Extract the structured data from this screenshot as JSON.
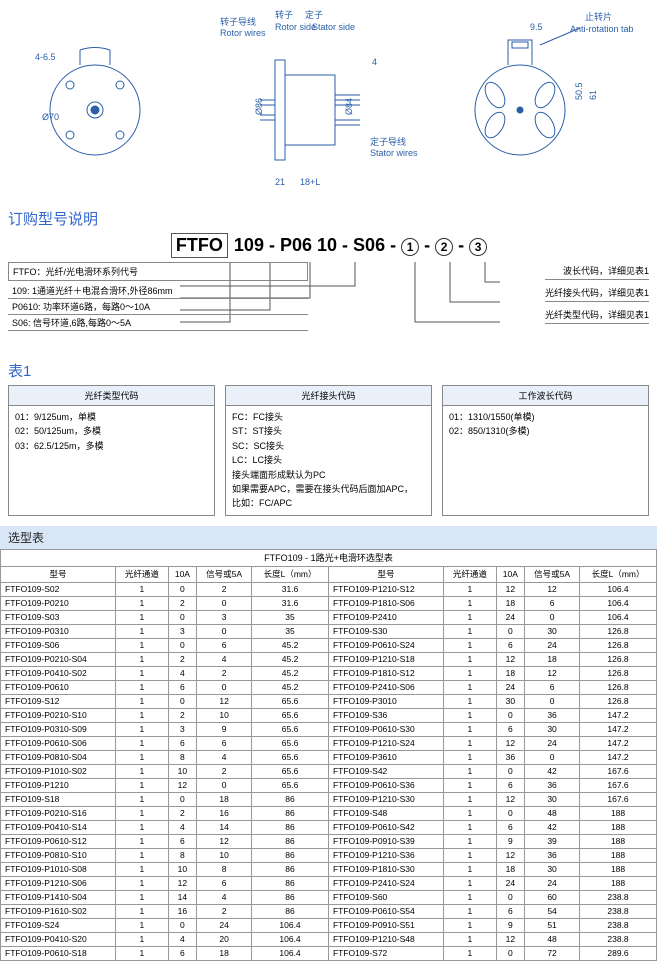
{
  "diagram": {
    "labels": {
      "rotor_side_cn": "转子",
      "stator_side_cn": "定子",
      "rotor_side_en": "Rotor side",
      "rotor_wires_cn": "转子导线",
      "rotor_wires_en": "Rotor wires",
      "stator_side_en": "Stator side",
      "stator_wires_cn": "定子导线",
      "stator_wires_en": "Stator wires",
      "anti_rotation_cn": "止转片",
      "anti_rotation_en": "Anti-rotation tab",
      "dim_d70": "Ø70",
      "dim_465": "4-6.5",
      "dim_d86": "Ø86",
      "dim_d84": "Ø84",
      "dim_21": "21",
      "dim_18L": "18+L",
      "dim_4": "4",
      "dim_95": "9.5",
      "dim_505": "50.5",
      "dim_61": "61"
    },
    "colors": {
      "line": "#2b5fa8",
      "text": "#2b5fa8"
    }
  },
  "section_titles": {
    "ordering": "订购型号说明",
    "table1": "表1",
    "selection": "选型表"
  },
  "part_number": {
    "p1": "FTFO",
    "p2": "109",
    "p3": "P06",
    "p4": "10",
    "p5": "S06",
    "c1": "1",
    "c2": "2",
    "c3": "3"
  },
  "legend_left": {
    "box": "FTFO：光纤/光电滑环系列代号",
    "l1": "109: 1通道光纤＋电混合滑环,外径86mm",
    "l2": "P0610: 功率环道6路，每路0～10A",
    "l3": "S06: 信号环道,6路,每路0～5A"
  },
  "legend_right": {
    "r1": "波长代码，详细见表1",
    "r2": "光纤接头代码，详细见表1",
    "r3": "光纤类型代码，详细见表1"
  },
  "table1": {
    "col1_header": "光纤类型代码",
    "col2_header": "光纤接头代码",
    "col3_header": "工作波长代码",
    "col1_lines": [
      "01：9/125um，单模",
      "02：50/125um，多模",
      "03：62.5/125m，多模"
    ],
    "col2_lines": [
      "FC：FC接头",
      "ST：ST接头",
      "SC：SC接头",
      "LC：LC接头",
      "接头端面形成默认为PC",
      "如果需要APC，需要在接头代码后面加APC，",
      "比如：FC/APC"
    ],
    "col3_lines": [
      "01：1310/1550(单模)",
      "02：850/1310(多模)"
    ]
  },
  "selection": {
    "title": "FTFO109 - 1路光+电滑环选型表",
    "headers": {
      "model": "型号",
      "fiber": "光纤通道",
      "a10": "10A",
      "sig5a": "信号或5A",
      "len": "长度L（mm）"
    },
    "left_rows": [
      [
        "FTFO109-S02",
        "1",
        "0",
        "2",
        "31.6"
      ],
      [
        "FTFO109-P0210",
        "1",
        "2",
        "0",
        "31.6"
      ],
      [
        "FTFO109-S03",
        "1",
        "0",
        "3",
        "35"
      ],
      [
        "FTFO109-P0310",
        "1",
        "3",
        "0",
        "35"
      ],
      [
        "FTFO109-S06",
        "1",
        "0",
        "6",
        "45.2"
      ],
      [
        "FTFO109-P0210-S04",
        "1",
        "2",
        "4",
        "45.2"
      ],
      [
        "FTFO109-P0410-S02",
        "1",
        "4",
        "2",
        "45.2"
      ],
      [
        "FTFO109-P0610",
        "1",
        "6",
        "0",
        "45.2"
      ],
      [
        "FTFO109-S12",
        "1",
        "0",
        "12",
        "65.6"
      ],
      [
        "FTFO109-P0210-S10",
        "1",
        "2",
        "10",
        "65.6"
      ],
      [
        "FTFO109-P0310-S09",
        "1",
        "3",
        "9",
        "65.6"
      ],
      [
        "FTFO109-P0610-S06",
        "1",
        "6",
        "6",
        "65.6"
      ],
      [
        "FTFO109-P0810-S04",
        "1",
        "8",
        "4",
        "65.6"
      ],
      [
        "FTFO109-P1010-S02",
        "1",
        "10",
        "2",
        "65.6"
      ],
      [
        "FTFO109-P1210",
        "1",
        "12",
        "0",
        "65.6"
      ],
      [
        "FTFO109-S18",
        "1",
        "0",
        "18",
        "86"
      ],
      [
        "FTFO109-P0210-S16",
        "1",
        "2",
        "16",
        "86"
      ],
      [
        "FTFO109-P0410-S14",
        "1",
        "4",
        "14",
        "86"
      ],
      [
        "FTFO109-P0610-S12",
        "1",
        "6",
        "12",
        "86"
      ],
      [
        "FTFO109-P0810-S10",
        "1",
        "8",
        "10",
        "86"
      ],
      [
        "FTFO109-P1010-S08",
        "1",
        "10",
        "8",
        "86"
      ],
      [
        "FTFO109-P1210-S06",
        "1",
        "12",
        "6",
        "86"
      ],
      [
        "FTFO109-P1410-S04",
        "1",
        "14",
        "4",
        "86"
      ],
      [
        "FTFO109-P1610-S02",
        "1",
        "16",
        "2",
        "86"
      ],
      [
        "FTFO109-S24",
        "1",
        "0",
        "24",
        "106.4"
      ],
      [
        "FTFO109-P0410-S20",
        "1",
        "4",
        "20",
        "106.4"
      ],
      [
        "FTFO109-P0610-S18",
        "1",
        "6",
        "18",
        "106.4"
      ]
    ],
    "right_rows": [
      [
        "FTFO109-P1210-S12",
        "1",
        "12",
        "12",
        "106.4"
      ],
      [
        "FTFO109-P1810-S06",
        "1",
        "18",
        "6",
        "106.4"
      ],
      [
        "FTFO109-P2410",
        "1",
        "24",
        "0",
        "106.4"
      ],
      [
        "FTFO109-S30",
        "1",
        "0",
        "30",
        "126.8"
      ],
      [
        "FTFO109-P0610-S24",
        "1",
        "6",
        "24",
        "126.8"
      ],
      [
        "FTFO109-P1210-S18",
        "1",
        "12",
        "18",
        "126.8"
      ],
      [
        "FTFO109-P1810-S12",
        "1",
        "18",
        "12",
        "126.8"
      ],
      [
        "FTFO109-P2410-S06",
        "1",
        "24",
        "6",
        "126.8"
      ],
      [
        "FTFO109-P3010",
        "1",
        "30",
        "0",
        "126.8"
      ],
      [
        "FTFO109-S36",
        "1",
        "0",
        "36",
        "147.2"
      ],
      [
        "FTFO109-P0610-S30",
        "1",
        "6",
        "30",
        "147.2"
      ],
      [
        "FTFO109-P1210-S24",
        "1",
        "12",
        "24",
        "147.2"
      ],
      [
        "FTFO109-P3610",
        "1",
        "36",
        "0",
        "147.2"
      ],
      [
        "FTFO109-S42",
        "1",
        "0",
        "42",
        "167.6"
      ],
      [
        "FTFO109-P0610-S36",
        "1",
        "6",
        "36",
        "167.6"
      ],
      [
        "FTFO109-P1210-S30",
        "1",
        "12",
        "30",
        "167.6"
      ],
      [
        "FTFO109-S48",
        "1",
        "0",
        "48",
        "188"
      ],
      [
        "FTFO109-P0610-S42",
        "1",
        "6",
        "42",
        "188"
      ],
      [
        "FTFO109-P0910-S39",
        "1",
        "9",
        "39",
        "188"
      ],
      [
        "FTFO109-P1210-S36",
        "1",
        "12",
        "36",
        "188"
      ],
      [
        "FTFO109-P1810-S30",
        "1",
        "18",
        "30",
        "188"
      ],
      [
        "FTFO109-P2410-S24",
        "1",
        "24",
        "24",
        "188"
      ],
      [
        "FTFO109-S60",
        "1",
        "0",
        "60",
        "238.8"
      ],
      [
        "FTFO109-P0610-S54",
        "1",
        "6",
        "54",
        "238.8"
      ],
      [
        "FTFO109-P0910-S51",
        "1",
        "9",
        "51",
        "238.8"
      ],
      [
        "FTFO109-P1210-S48",
        "1",
        "12",
        "48",
        "238.8"
      ],
      [
        "FTFO109-S72",
        "1",
        "0",
        "72",
        "289.6"
      ]
    ]
  }
}
